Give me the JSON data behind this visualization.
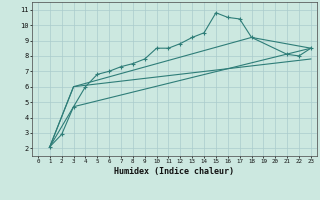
{
  "title": "",
  "xlabel": "Humidex (Indice chaleur)",
  "bg_color": "#cce8e0",
  "grid_color": "#aacccc",
  "line_color": "#2e7d78",
  "xlim": [
    -0.5,
    23.5
  ],
  "ylim": [
    1.5,
    11.5
  ],
  "xticks": [
    0,
    1,
    2,
    3,
    4,
    5,
    6,
    7,
    8,
    9,
    10,
    11,
    12,
    13,
    14,
    15,
    16,
    17,
    18,
    19,
    20,
    21,
    22,
    23
  ],
  "yticks": [
    2,
    3,
    4,
    5,
    6,
    7,
    8,
    9,
    10,
    11
  ],
  "series": [
    {
      "x": [
        1,
        2,
        3,
        4,
        5,
        6,
        7,
        8,
        9,
        10,
        11,
        12,
        13,
        14,
        15,
        16,
        17,
        18,
        21,
        22,
        23
      ],
      "y": [
        2.1,
        2.9,
        4.7,
        6.0,
        6.8,
        7.0,
        7.3,
        7.5,
        7.8,
        8.5,
        8.5,
        8.8,
        9.2,
        9.5,
        10.8,
        10.5,
        10.4,
        9.2,
        8.1,
        8.0,
        8.5
      ],
      "marker": true
    },
    {
      "x": [
        1,
        3,
        18,
        23
      ],
      "y": [
        2.1,
        6.0,
        9.2,
        8.5
      ],
      "marker": false
    },
    {
      "x": [
        1,
        3,
        23
      ],
      "y": [
        2.1,
        6.0,
        7.8
      ],
      "marker": false
    },
    {
      "x": [
        1,
        3,
        23
      ],
      "y": [
        2.1,
        4.7,
        8.5
      ],
      "marker": false
    }
  ]
}
